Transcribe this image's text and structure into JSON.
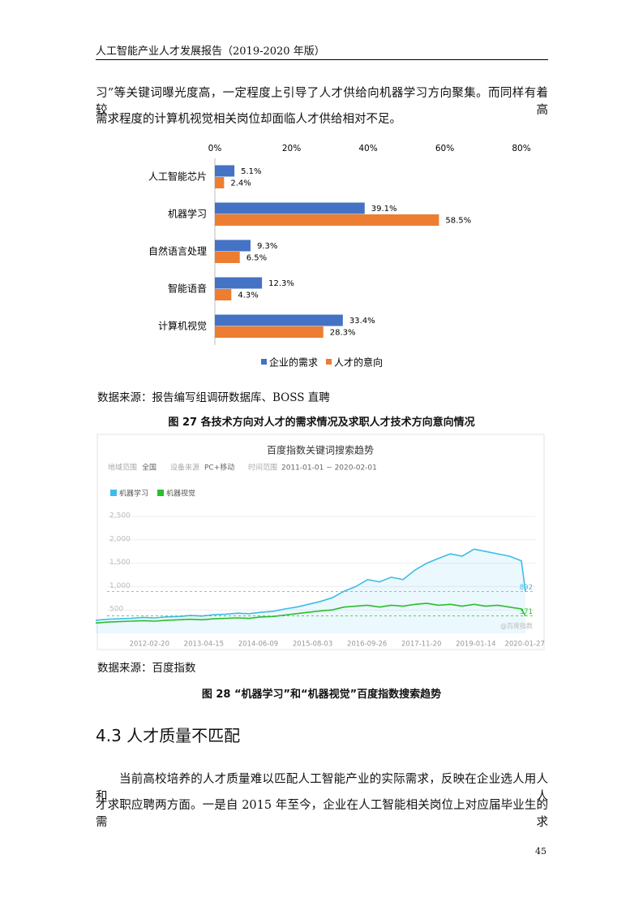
{
  "header": {
    "title": "人工智能产业人才发展报告（2019-2020 年版）"
  },
  "paragraph1": [
    "习”等关键词曝光度高，一定程度上引导了人才供给向机器学习方向聚集。而同样有着较高",
    "需求程度的计算机视觉相关岗位却面临人才供给相对不足。"
  ],
  "chart_data": [
    {
      "type": "bar",
      "orientation": "horizontal",
      "categories": [
        "人工智能芯片",
        "机器学习",
        "自然语言处理",
        "智能语音",
        "计算机视觉"
      ],
      "series": [
        {
          "name": "企业的需求",
          "color": "#4472c4",
          "values": [
            5.1,
            39.1,
            9.3,
            12.3,
            33.4
          ],
          "value_labels": [
            "5.1%",
            "39.1%",
            "9.3%",
            "12.3%",
            "33.4%"
          ]
        },
        {
          "name": "人才的意向",
          "color": "#ed7d31",
          "values": [
            2.4,
            58.5,
            6.5,
            4.3,
            28.3
          ],
          "value_labels": [
            "2.4%",
            "58.5%",
            "6.5%",
            "4.3%",
            "28.3%"
          ]
        }
      ],
      "xlim": [
        0,
        80
      ],
      "xticks": [
        {
          "value": 0,
          "label": "0%"
        },
        {
          "value": 20,
          "label": "20%"
        },
        {
          "value": 40,
          "label": "40%"
        },
        {
          "value": 60,
          "label": "60%"
        },
        {
          "value": 80,
          "label": "80%"
        }
      ],
      "legend": "bottom"
    },
    {
      "type": "line",
      "title": "百度指数关键词搜索趋势",
      "filters": [
        "地域范围",
        "全国",
        "设备来源",
        "PC+移动",
        "时间范围",
        "2011-01-01 ~ 2020-02-01"
      ],
      "watermark": "@百度指数",
      "x": [
        "2011-01-01",
        "2011-04-01",
        "2011-07-01",
        "2011-10-01",
        "2012-01-01",
        "2012-04-01",
        "2012-07-01",
        "2012-10-01",
        "2013-01-01",
        "2013-04-01",
        "2013-07-01",
        "2013-10-01",
        "2014-01-01",
        "2014-04-01",
        "2014-07-01",
        "2014-10-01",
        "2015-01-01",
        "2015-04-01",
        "2015-07-01",
        "2015-10-01",
        "2016-01-01",
        "2016-04-01",
        "2016-07-01",
        "2016-10-01",
        "2017-01-01",
        "2017-04-01",
        "2017-07-01",
        "2017-10-01",
        "2018-01-01",
        "2018-04-01",
        "2018-07-01",
        "2018-10-01",
        "2019-01-01",
        "2019-04-01",
        "2019-07-01",
        "2019-10-01",
        "2020-01-01",
        "2020-02-01"
      ],
      "series": [
        {
          "name": "机器学习",
          "color": "#3ebce8",
          "values": [
            280,
            300,
            310,
            320,
            340,
            330,
            350,
            360,
            380,
            370,
            400,
            410,
            430,
            420,
            450,
            470,
            520,
            560,
            620,
            680,
            760,
            900,
            1000,
            1150,
            1100,
            1200,
            1150,
            1350,
            1500,
            1600,
            1700,
            1650,
            1800,
            1750,
            1700,
            1650,
            1550,
            892
          ]
        },
        {
          "name": "机器视觉",
          "color": "#2dbd2d",
          "values": [
            220,
            240,
            250,
            260,
            270,
            260,
            280,
            290,
            300,
            290,
            310,
            320,
            330,
            320,
            350,
            360,
            390,
            420,
            450,
            480,
            500,
            560,
            580,
            600,
            560,
            600,
            580,
            620,
            640,
            600,
            620,
            580,
            620,
            580,
            600,
            560,
            520,
            371
          ]
        }
      ],
      "xlim": [
        "2011-01-01",
        "2020-02-01"
      ],
      "xticks": [
        "2012-02-20",
        "2013-04-15",
        "2014-06-09",
        "2015-08-03",
        "2016-09-26",
        "2017-11-20",
        "2019-01-14",
        "2020-01-27"
      ],
      "ylim": [
        0,
        2500
      ],
      "yticks": [
        {
          "value": 500,
          "label": "500"
        },
        {
          "value": 1000,
          "label": "1,000"
        },
        {
          "value": 1500,
          "label": "1,500"
        },
        {
          "value": 2000,
          "label": "2,000"
        },
        {
          "value": 2500,
          "label": "2,500"
        }
      ],
      "grid": true
    }
  ],
  "source1": "数据来源：报告编写组调研数据库、BOSS 直聘",
  "caption1": "图 27 各技术方向对人才的需求情况及求职人才技术方向意向情况",
  "source2": "数据来源：百度指数",
  "caption2": "图 28 “机器学习”和“机器视觉”百度指数搜索趋势",
  "section": {
    "title": "4.3 人才质量不匹配"
  },
  "paragraph2": [
    "当前高校培养的人才质量难以匹配人工智能产业的实际需求，反映在企业选人用人和人",
    "才求职应聘两方面。一是自 2015 年至今，企业在人工智能相关岗位上对应届毕业生的需求"
  ],
  "page_number": "45"
}
